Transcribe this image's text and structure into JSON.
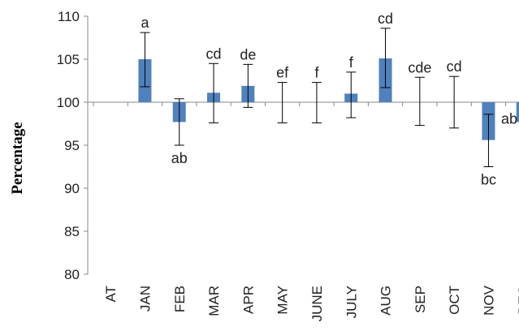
{
  "chart_data": {
    "type": "bar",
    "title": "",
    "xlabel": "",
    "ylabel": "Percentage",
    "ylim": [
      80,
      110
    ],
    "yticks": [
      80,
      85,
      90,
      95,
      100,
      105,
      110
    ],
    "baseline": 100,
    "bar_color": "#4f81bd",
    "categories": [
      "AT",
      "JAN",
      "FEB",
      "MAR",
      "APR",
      "MAY",
      "JUNE",
      "JULY",
      "AUG",
      "SEP",
      "OCT",
      "NOV",
      "DEC"
    ],
    "values": [
      null,
      105,
      97.7,
      101.1,
      101.9,
      100,
      100,
      101,
      105.1,
      100,
      100,
      95.6,
      97.7
    ],
    "error_low": [
      null,
      101.8,
      95,
      97.6,
      99.4,
      97.6,
      97.6,
      98.2,
      101.7,
      97.3,
      97,
      92.5,
      null
    ],
    "error_high": [
      null,
      108.1,
      100.4,
      104.5,
      104.4,
      102.3,
      102.3,
      103.5,
      108.6,
      102.9,
      103,
      98.6,
      null
    ],
    "group_labels": [
      "",
      "a",
      "ab",
      "cd",
      "de",
      "ef",
      "f",
      "f",
      "cd",
      "cde",
      "cd",
      "bc",
      "ab"
    ],
    "grid": false,
    "legend": "none"
  }
}
